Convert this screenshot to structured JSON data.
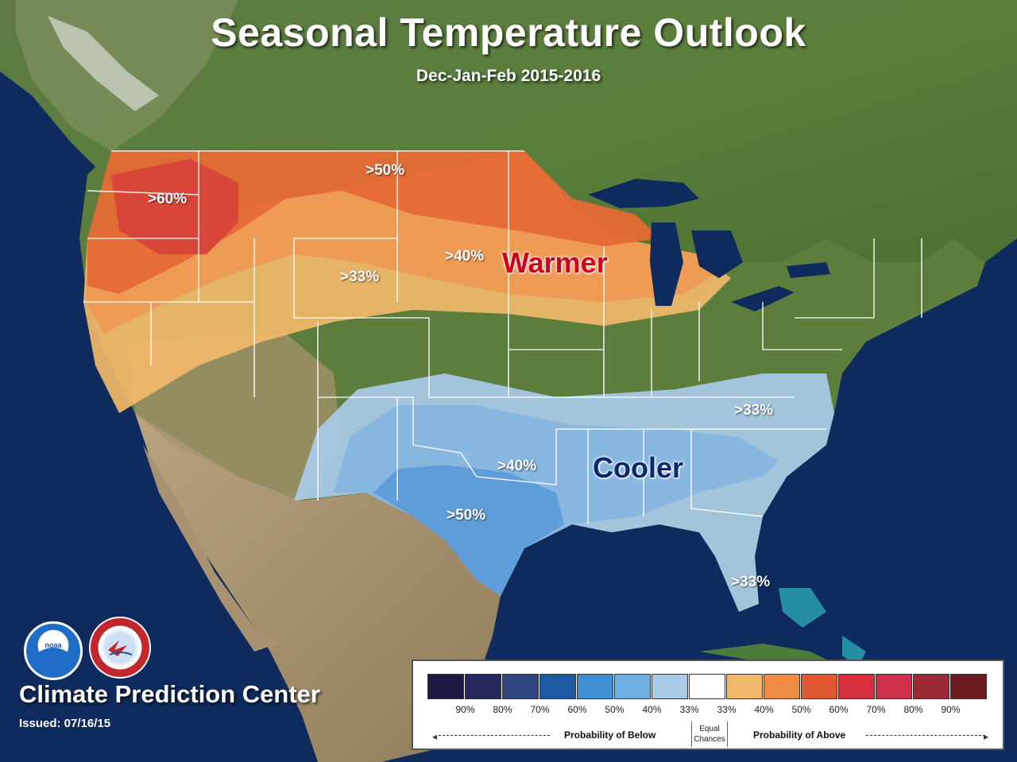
{
  "title": "Seasonal Temperature Outlook",
  "subtitle": "Dec-Jan-Feb 2015-2016",
  "map_labels": {
    "warm_60": ">60%",
    "warm_50": ">50%",
    "warm_40": ">40%",
    "warm_33": ">33%",
    "cool_33_east": ">33%",
    "cool_40": ">40%",
    "cool_50": ">50%",
    "cool_33_fl": ">33%",
    "warmer": "Warmer",
    "cooler": "Cooler"
  },
  "footer": {
    "center_name": "Climate Prediction Center",
    "issued": "Issued: 07/16/15"
  },
  "logos": {
    "noaa": "noaa-logo",
    "nws": "national-weather-service-logo"
  },
  "legend": {
    "swatch_colors": [
      "#1a1a45",
      "#25285e",
      "#2f4683",
      "#1c5aa3",
      "#3f8fd4",
      "#6fb0e4",
      "#a9cbe8",
      "#ffffff",
      "#f2b86a",
      "#ee8b45",
      "#e0582f",
      "#d8303a",
      "#d0304a",
      "#9b2a35",
      "#6b1a20"
    ],
    "ticks": [
      "90%",
      "80%",
      "70%",
      "60%",
      "50%",
      "40%",
      "33%",
      "33%",
      "40%",
      "50%",
      "60%",
      "70%",
      "80%",
      "90%"
    ],
    "below_label": "Probability of Below",
    "equal_line1": "Equal",
    "equal_line2": "Chances",
    "above_label": "Probability of Above"
  }
}
